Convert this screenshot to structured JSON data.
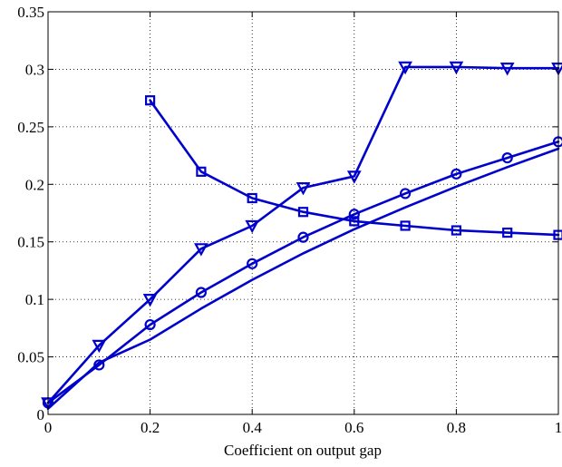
{
  "chart_data": {
    "type": "line",
    "title": "",
    "xlabel": "Coefficient on output gap",
    "ylabel": "",
    "xlim": [
      0,
      1
    ],
    "ylim": [
      0,
      0.35
    ],
    "xticks": [
      0,
      0.2,
      0.4,
      0.6,
      0.8,
      1
    ],
    "xtick_labels": [
      "0",
      "0.2",
      "0.4",
      "0.6",
      "0.8",
      "1"
    ],
    "yticks": [
      0,
      0.05,
      0.1,
      0.15,
      0.2,
      0.25,
      0.3,
      0.35
    ],
    "ytick_labels": [
      "0",
      "0.05",
      "0.1",
      "0.15",
      "0.2",
      "0.25",
      "0.3",
      "0.35"
    ],
    "grid": true,
    "line_color": "#0000cc",
    "series": [
      {
        "marker": "triangle-down",
        "x": [
          0,
          0.1,
          0.2,
          0.3,
          0.4,
          0.5,
          0.6,
          0.7,
          0.8,
          0.9,
          1.0
        ],
        "y": [
          0.01,
          0.06,
          0.1,
          0.144,
          0.164,
          0.197,
          0.207,
          0.302,
          0.302,
          0.301,
          0.301
        ]
      },
      {
        "marker": "square",
        "x": [
          0.2,
          0.3,
          0.4,
          0.5,
          0.6,
          0.7,
          0.8,
          0.9,
          1.0
        ],
        "y": [
          0.273,
          0.211,
          0.188,
          0.176,
          0.168,
          0.164,
          0.16,
          0.158,
          0.156
        ]
      },
      {
        "marker": "circle",
        "x": [
          0,
          0.1,
          0.2,
          0.3,
          0.4,
          0.5,
          0.6,
          0.7,
          0.8,
          0.9,
          1.0
        ],
        "y": [
          0.01,
          0.043,
          0.078,
          0.106,
          0.131,
          0.154,
          0.174,
          0.192,
          0.209,
          0.223,
          0.237
        ]
      },
      {
        "marker": "none",
        "x": [
          0,
          0.1,
          0.2,
          0.3,
          0.4,
          0.5,
          0.6,
          0.7,
          0.8,
          0.9,
          1.0
        ],
        "y": [
          0.005,
          0.045,
          0.065,
          0.092,
          0.117,
          0.14,
          0.161,
          0.18,
          0.198,
          0.215,
          0.231
        ]
      }
    ]
  }
}
